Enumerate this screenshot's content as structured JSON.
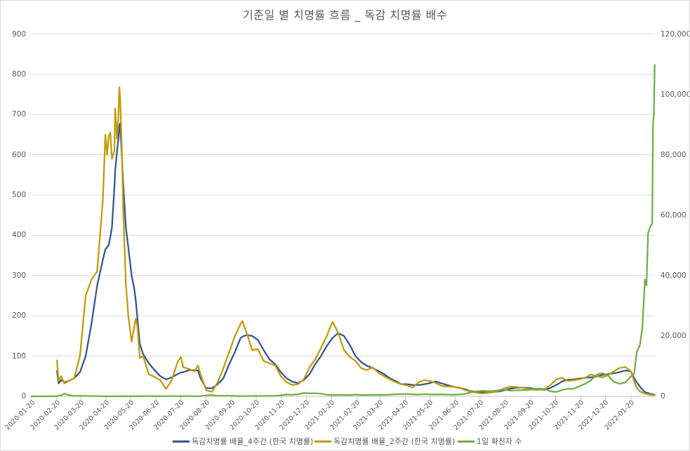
{
  "chart_data": {
    "type": "line",
    "title": "기준일 별 치명률 흐름 _ 독감 치명률 배수",
    "xlabel": "",
    "ylabel": "",
    "ylabel_right": "",
    "grid": true,
    "legend_position": "bottom",
    "y_left": {
      "min": 0,
      "max": 900,
      "step": 100,
      "ticks": [
        "0",
        "100",
        "200",
        "300",
        "400",
        "500",
        "600",
        "700",
        "800",
        "900"
      ]
    },
    "y_right": {
      "min": 0,
      "max": 120000,
      "step": 20000,
      "ticks": [
        "0",
        "20,000",
        "40,000",
        "60,000",
        "80,000",
        "100,000",
        "120,000"
      ]
    },
    "x_tick_labels": [
      "2020-01-20",
      "2020-02-20",
      "2020-03-20",
      "2020-04-20",
      "2020-05-20",
      "2020-06-20",
      "2020-07-20",
      "2020-08-20",
      "2020-09-20",
      "2020-10-20",
      "2020-11-20",
      "2020-12-20",
      "2021-01-20",
      "2021-02-20",
      "2021-03-20",
      "2021-04-20",
      "2021-05-20",
      "2021-06-20",
      "2021-07-20",
      "2021-08-20",
      "2021-09-20",
      "2021-10-20",
      "2021-11-20",
      "2021-12-20",
      "2022-01-20"
    ],
    "x": [
      "2020-01-20",
      "2020-01-27",
      "2020-02-03",
      "2020-02-10",
      "2020-02-17",
      "2020-02-20",
      "2020-02-22",
      "2020-02-25",
      "2020-02-29",
      "2020-03-05",
      "2020-03-12",
      "2020-03-19",
      "2020-03-26",
      "2020-04-02",
      "2020-04-09",
      "2020-04-16",
      "2020-04-19",
      "2020-04-21",
      "2020-04-23",
      "2020-04-25",
      "2020-04-27",
      "2020-04-30",
      "2020-05-01",
      "2020-05-03",
      "2020-05-05",
      "2020-05-06",
      "2020-05-07",
      "2020-05-09",
      "2020-05-11",
      "2020-05-14",
      "2020-05-17",
      "2020-05-21",
      "2020-05-24",
      "2020-05-26",
      "2020-05-28",
      "2020-05-31",
      "2020-06-04",
      "2020-06-11",
      "2020-06-18",
      "2020-06-25",
      "2020-07-02",
      "2020-07-09",
      "2020-07-16",
      "2020-07-20",
      "2020-07-23",
      "2020-07-30",
      "2020-08-06",
      "2020-08-10",
      "2020-08-13",
      "2020-08-20",
      "2020-08-27",
      "2020-09-03",
      "2020-09-10",
      "2020-09-17",
      "2020-09-24",
      "2020-10-01",
      "2020-10-03",
      "2020-10-08",
      "2020-10-15",
      "2020-10-22",
      "2020-10-29",
      "2020-11-05",
      "2020-11-12",
      "2020-11-19",
      "2020-11-26",
      "2020-12-03",
      "2020-12-10",
      "2020-12-17",
      "2020-12-24",
      "2020-12-31",
      "2021-01-07",
      "2021-01-14",
      "2021-01-21",
      "2021-01-28",
      "2021-02-04",
      "2021-02-11",
      "2021-02-18",
      "2021-02-25",
      "2021-03-04",
      "2021-03-11",
      "2021-03-18",
      "2021-03-25",
      "2021-04-01",
      "2021-04-08",
      "2021-04-15",
      "2021-04-22",
      "2021-04-29",
      "2021-05-06",
      "2021-05-13",
      "2021-05-20",
      "2021-05-27",
      "2021-06-03",
      "2021-06-10",
      "2021-06-17",
      "2021-06-24",
      "2021-07-01",
      "2021-07-08",
      "2021-07-15",
      "2021-07-22",
      "2021-07-29",
      "2021-08-05",
      "2021-08-12",
      "2021-08-19",
      "2021-08-26",
      "2021-09-02",
      "2021-09-09",
      "2021-09-16",
      "2021-09-23",
      "2021-09-30",
      "2021-10-07",
      "2021-10-14",
      "2021-10-21",
      "2021-10-28",
      "2021-11-04",
      "2021-11-11",
      "2021-11-18",
      "2021-11-25",
      "2021-12-02",
      "2021-12-09",
      "2021-12-16",
      "2021-12-23",
      "2021-12-30",
      "2022-01-06",
      "2022-01-13",
      "2022-01-20",
      "2022-01-24",
      "2022-01-27",
      "2022-01-31",
      "2022-02-03",
      "2022-02-06",
      "2022-02-08",
      "2022-02-10",
      "2022-02-13",
      "2022-02-15",
      "2022-02-16",
      "2022-02-17",
      "2022-02-18"
    ],
    "series": [
      {
        "name": "독감치명률 배율_4주간 (한국 치명률)",
        "axis": "left",
        "color": "#2F5597",
        "values": [
          null,
          null,
          null,
          null,
          null,
          63,
          32,
          40,
          35,
          38,
          45,
          60,
          100,
          180,
          275,
          340,
          365,
          370,
          375,
          395,
          420,
          520,
          560,
          605,
          640,
          670,
          678,
          600,
          520,
          420,
          370,
          300,
          270,
          240,
          195,
          130,
          105,
          82,
          65,
          50,
          42,
          47,
          55,
          59,
          60,
          65,
          65,
          64,
          45,
          20,
          20,
          30,
          45,
          80,
          110,
          145,
          148,
          152,
          150,
          140,
          115,
          92,
          80,
          60,
          45,
          36,
          33,
          40,
          55,
          80,
          100,
          125,
          145,
          157,
          150,
          128,
          100,
          85,
          76,
          70,
          63,
          55,
          45,
          38,
          30,
          30,
          28,
          28,
          30,
          33,
          37,
          32,
          28,
          24,
          21,
          18,
          13,
          11,
          10,
          10,
          11,
          12,
          15,
          19,
          21,
          21,
          21,
          19,
          17,
          16,
          21,
          28,
          37,
          41,
          42,
          44,
          46,
          47,
          49,
          53,
          55,
          57,
          60,
          64,
          62,
          45,
          35,
          24,
          16,
          11,
          9,
          8,
          6,
          5,
          5,
          4,
          4
        ]
      },
      {
        "name": "독감치명률 배율_2주간 (한국 치명률)",
        "axis": "left",
        "color": "#C49A00",
        "values": [
          null,
          null,
          null,
          null,
          null,
          89,
          38,
          50,
          32,
          38,
          45,
          100,
          250,
          290,
          310,
          490,
          650,
          600,
          645,
          655,
          590,
          610,
          715,
          640,
          700,
          768,
          745,
          620,
          450,
          280,
          200,
          135,
          170,
          193,
          175,
          95,
          100,
          55,
          48,
          40,
          18,
          40,
          85,
          97,
          72,
          68,
          62,
          77,
          55,
          15,
          11,
          35,
          70,
          110,
          150,
          180,
          187,
          160,
          115,
          117,
          88,
          82,
          77,
          50,
          35,
          28,
          30,
          42,
          72,
          92,
          120,
          150,
          185,
          158,
          115,
          98,
          88,
          70,
          65,
          72,
          58,
          50,
          42,
          35,
          30,
          27,
          22,
          35,
          40,
          38,
          33,
          26,
          24,
          24,
          22,
          16,
          12,
          9,
          7,
          8,
          10,
          14,
          20,
          24,
          23,
          21,
          19,
          16,
          16,
          18,
          28,
          42,
          46,
          38,
          40,
          42,
          46,
          54,
          50,
          47,
          52,
          62,
          70,
          73,
          62,
          37,
          22,
          12,
          9,
          7,
          6,
          5,
          4,
          3,
          3,
          3,
          3
        ]
      },
      {
        "name": "1일 확진자 수",
        "axis": "right",
        "color": "#70AD47",
        "values": [
          1,
          1,
          1,
          0,
          1,
          36,
          229,
          284,
          909,
          438,
          114,
          152,
          104,
          89,
          39,
          22,
          8,
          9,
          8,
          10,
          10,
          4,
          9,
          13,
          3,
          2,
          4,
          18,
          35,
          27,
          15,
          12,
          25,
          19,
          79,
          27,
          39,
          45,
          59,
          28,
          54,
          50,
          39,
          26,
          59,
          36,
          20,
          28,
          56,
          288,
          441,
          195,
          176,
          153,
          125,
          77,
          75,
          69,
          110,
          121,
          125,
          145,
          143,
          343,
          583,
          540,
          682,
          1078,
          985,
          967,
          869,
          524,
          401,
          497,
          451,
          403,
          561,
          440,
          424,
          488,
          463,
          430,
          551,
          700,
          731,
          735,
          679,
          574,
          715,
          646,
          629,
          681,
          611,
          540,
          610,
          762,
          1275,
          1600,
          1842,
          1674,
          1776,
          1987,
          2152,
          1882,
          1961,
          2049,
          2080,
          2431,
          2564,
          2427,
          1618,
          1440,
          2111,
          2482,
          2520,
          3292,
          4116,
          5266,
          7174,
          7622,
          6919,
          4875,
          4126,
          4542,
          6603,
          7513,
          14518,
          17079,
          22907,
          38691,
          36717,
          54121,
          56431,
          57177,
          90443,
          93135,
          109831
        ]
      }
    ]
  }
}
